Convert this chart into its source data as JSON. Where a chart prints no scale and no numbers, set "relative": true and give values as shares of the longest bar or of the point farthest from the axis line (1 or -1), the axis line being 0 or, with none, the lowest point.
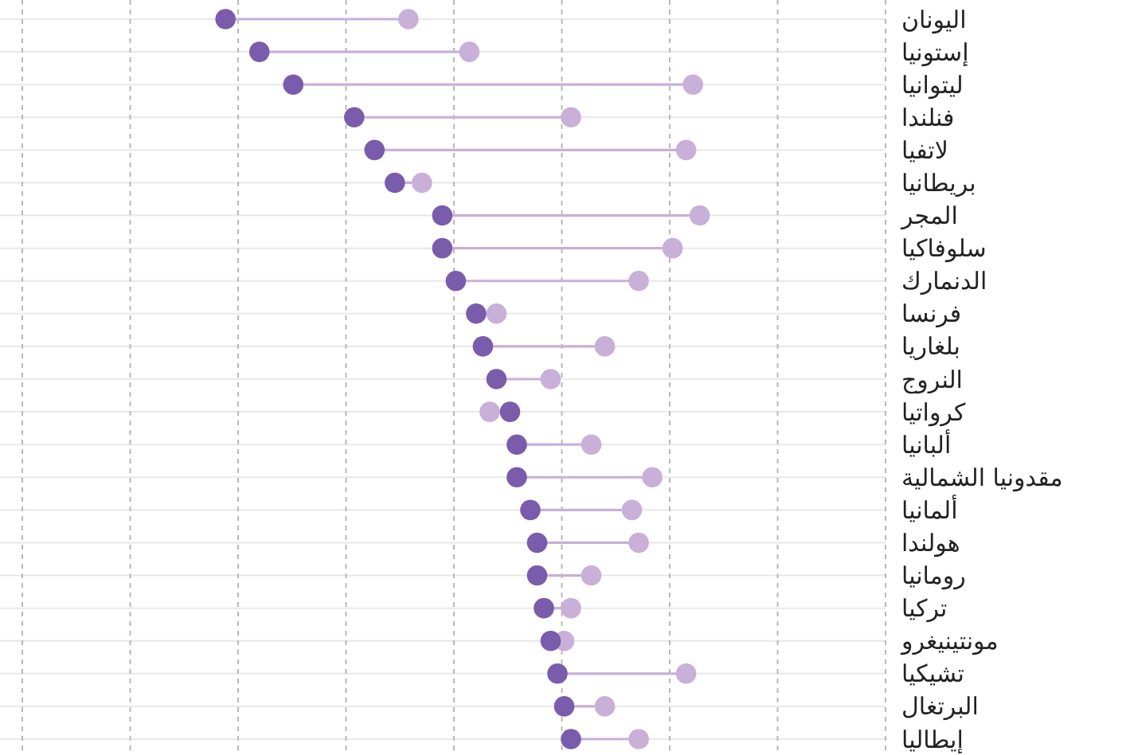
{
  "chart_data": {
    "type": "lollipop",
    "orientation": "horizontal",
    "relative": true,
    "grid": true,
    "marker": "circle",
    "categories": [
      "اليونان",
      "إستونيا",
      "ليتوانيا",
      "فنلندا",
      "لاتفيا",
      "بريطانيا",
      "المجر",
      "سلوفاكيا",
      "الدنمارك",
      "فرنسا",
      "بلغاريا",
      "النروج",
      "كرواتيا",
      "ألبانيا",
      "مقدونيا الشمالية",
      "ألمانيا",
      "هولندا",
      "رومانيا",
      "تركيا",
      "مونتينيغرو",
      "تشيكيا",
      "البرتغال",
      "إيطاليا"
    ],
    "series": [
      {
        "color": "#7a5cac",
        "values": [
          0.3,
          0.35,
          0.4,
          0.49,
          0.52,
          0.55,
          0.62,
          0.62,
          0.64,
          0.67,
          0.68,
          0.7,
          0.72,
          0.73,
          0.73,
          0.75,
          0.76,
          0.76,
          0.77,
          0.78,
          0.79,
          0.8,
          0.81
        ]
      },
      {
        "color": "#c8b0d8",
        "values": [
          0.57,
          0.66,
          0.99,
          0.81,
          0.98,
          0.59,
          1,
          0.96,
          0.91,
          0.7,
          0.86,
          0.78,
          0.69,
          0.84,
          0.93,
          0.9,
          0.91,
          0.84,
          0.81,
          0.8,
          0.98,
          0.86,
          0.91
        ]
      }
    ]
  }
}
